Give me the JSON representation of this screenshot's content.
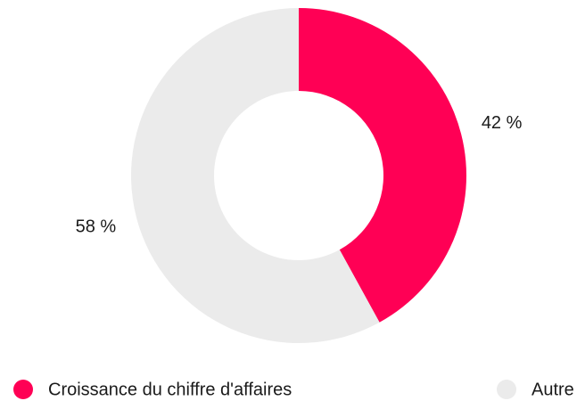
{
  "chart_data": {
    "type": "donut",
    "categories": [
      "Croissance du chiffre d'affaires",
      "Autre"
    ],
    "values": [
      42,
      58
    ],
    "value_labels": [
      "42 %",
      "58 %"
    ],
    "colors": [
      "#ff0055",
      "#ebebeb"
    ],
    "legend": "bottom"
  }
}
